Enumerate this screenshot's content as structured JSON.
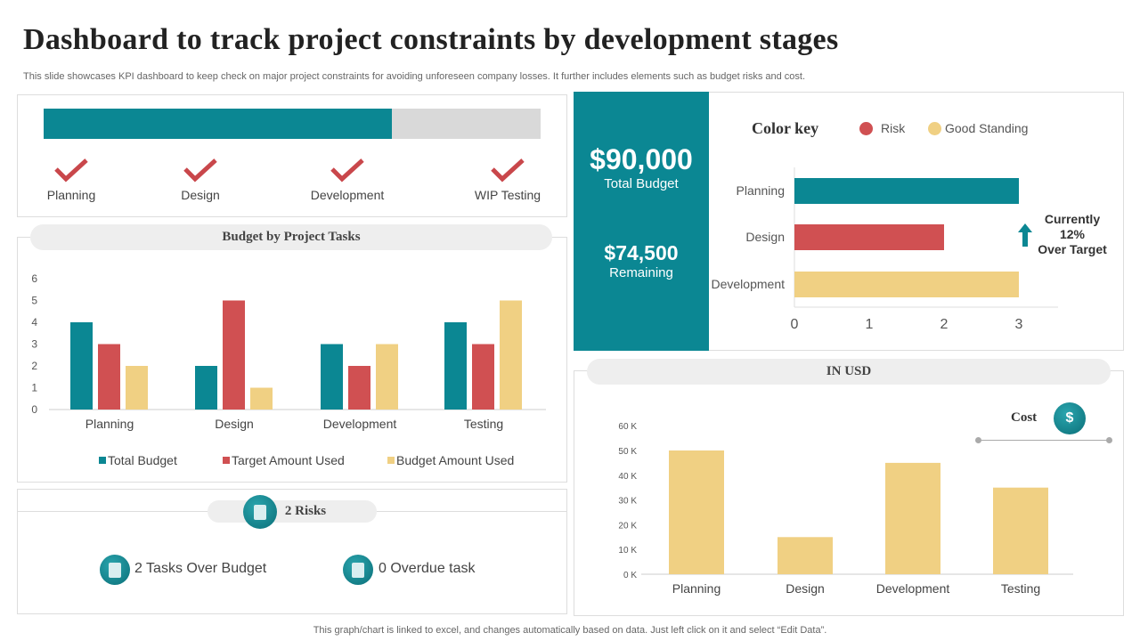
{
  "header": {
    "title": "Dashboard to track project constraints by development stages",
    "subtitle": "This slide showcases KPI dashboard to keep check on major project constraints for avoiding unforeseen company losses. It further includes elements such as budget risks and cost."
  },
  "progress": {
    "percent": 70,
    "fill_color": "#0b8793",
    "track_color": "#d9d9d9",
    "stages": [
      {
        "label": "Planning",
        "icon": "check-icon"
      },
      {
        "label": "Design",
        "icon": "check-icon"
      },
      {
        "label": "Development",
        "icon": "check-icon"
      },
      {
        "label": "WIP Testing",
        "icon": "check-icon"
      }
    ]
  },
  "budget_summary": {
    "total": "$90,000",
    "total_label": "Total Budget",
    "remaining": "$74,500",
    "remaining_label": "Remaining"
  },
  "color_key": {
    "title": "Color key",
    "items": [
      {
        "label": "Risk",
        "color": "#d05052"
      },
      {
        "label": "Good Standing",
        "color": "#f0d083"
      }
    ]
  },
  "status_note": {
    "line1": "Currently",
    "line2": "12%",
    "line3": "Over Target",
    "icon": "arrow-up-icon"
  },
  "risks": {
    "title": "2 Risks",
    "items": [
      {
        "label": "2 Tasks Over Budget",
        "icon": "budget-doc-icon"
      },
      {
        "label": "0 Overdue task",
        "icon": "clipboard-icon"
      }
    ]
  },
  "footer": "This graph/chart is linked to excel,  and changes automatically based on data. Just left click on it and select “Edit Data”.",
  "colors": {
    "teal": "#0b8793",
    "red": "#d05052",
    "yellow": "#f0d083"
  },
  "chart_data": [
    {
      "type": "bar",
      "title": "Budget by Project Tasks",
      "categories": [
        "Planning",
        "Design",
        "Development",
        "Testing"
      ],
      "ylim": [
        0,
        6
      ],
      "yticks": [
        "0",
        "1",
        "2",
        "3",
        "4",
        "5",
        "6"
      ],
      "legend_position": "bottom",
      "series": [
        {
          "name": "Total Budget",
          "color": "#0b8793",
          "values": [
            4,
            2,
            3,
            4
          ]
        },
        {
          "name": "Target Amount Used",
          "color": "#d05052",
          "values": [
            3,
            5,
            2,
            3
          ]
        },
        {
          "name": "Budget Amount Used",
          "color": "#f0d083",
          "values": [
            2,
            1,
            3,
            5
          ]
        }
      ]
    },
    {
      "type": "bar",
      "orientation": "horizontal",
      "categories": [
        "Planning",
        "Design",
        "Development"
      ],
      "values": [
        3,
        2,
        3
      ],
      "colors": [
        "#0b8793",
        "#d05052",
        "#f0d083"
      ],
      "xlim": [
        0,
        3
      ],
      "xticks": [
        "0",
        "1",
        "2",
        "3"
      ]
    },
    {
      "type": "bar",
      "title": "IN USD",
      "legend": "Cost",
      "categories": [
        "Planning",
        "Design",
        "Development",
        "Testing"
      ],
      "values": [
        50,
        15,
        45,
        35
      ],
      "unit": "K",
      "color": "#f0d083",
      "ylim": [
        0,
        60
      ],
      "yticks": [
        "0 K",
        "10 K",
        "20 K",
        "30 K",
        "40 K",
        "50 K",
        "60 K"
      ]
    }
  ]
}
